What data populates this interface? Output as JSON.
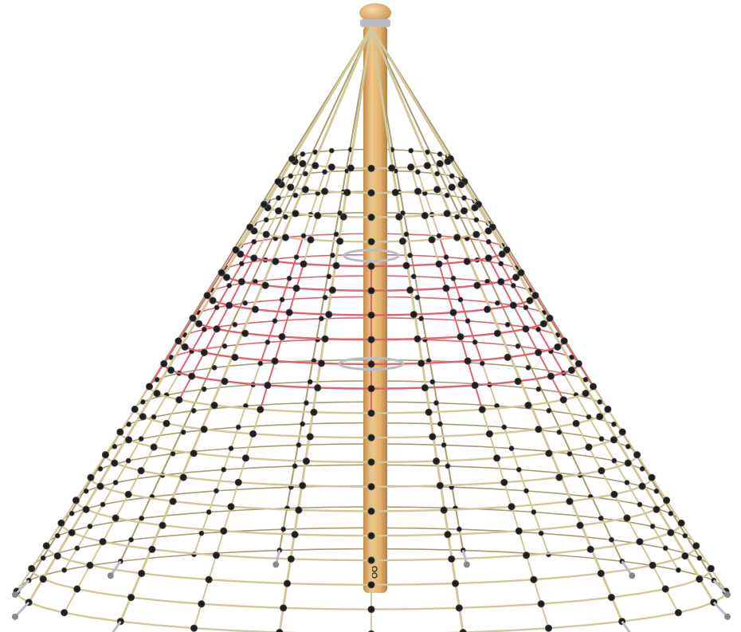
{
  "image": {
    "subject": "rope-pyramid-climbing-net",
    "colors": {
      "background": "#ffffff",
      "rope": "#d2c79a",
      "rope_dark": "#a89d70",
      "accent_rope": "#e0646e",
      "knot": "#1f1f1f",
      "pole": "#e2b36f",
      "pole_shade": "#c68c4a",
      "metal": "#b9bcc2"
    }
  }
}
